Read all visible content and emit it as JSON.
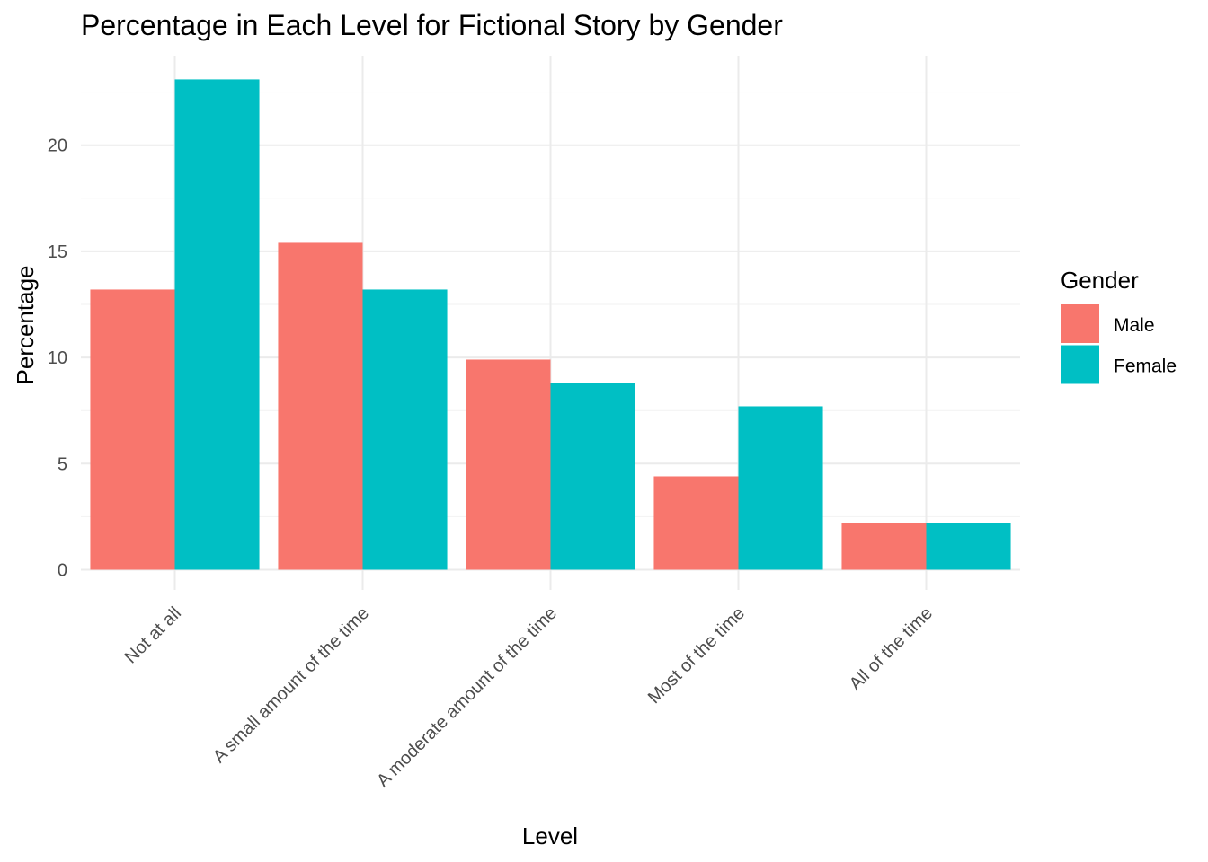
{
  "chart_data": {
    "type": "bar",
    "title": "Percentage in Each Level for Fictional Story by Gender",
    "xlabel": "Level",
    "ylabel": "Percentage",
    "categories": [
      "Not at all",
      "A small amount of the time",
      "A moderate amount of the time",
      "Most of the time",
      "All of the time"
    ],
    "series": [
      {
        "name": "Male",
        "color": "#F8766D",
        "values": [
          13.2,
          15.4,
          9.9,
          4.4,
          2.2
        ]
      },
      {
        "name": "Female",
        "color": "#00BFC4",
        "values": [
          23.1,
          13.2,
          8.8,
          7.7,
          2.2
        ]
      }
    ],
    "y_ticks": [
      "0",
      "5",
      "10",
      "15",
      "20"
    ],
    "ylim": [
      0,
      23.1
    ],
    "grid": true,
    "legend": {
      "title": "Gender",
      "position": "right"
    }
  }
}
